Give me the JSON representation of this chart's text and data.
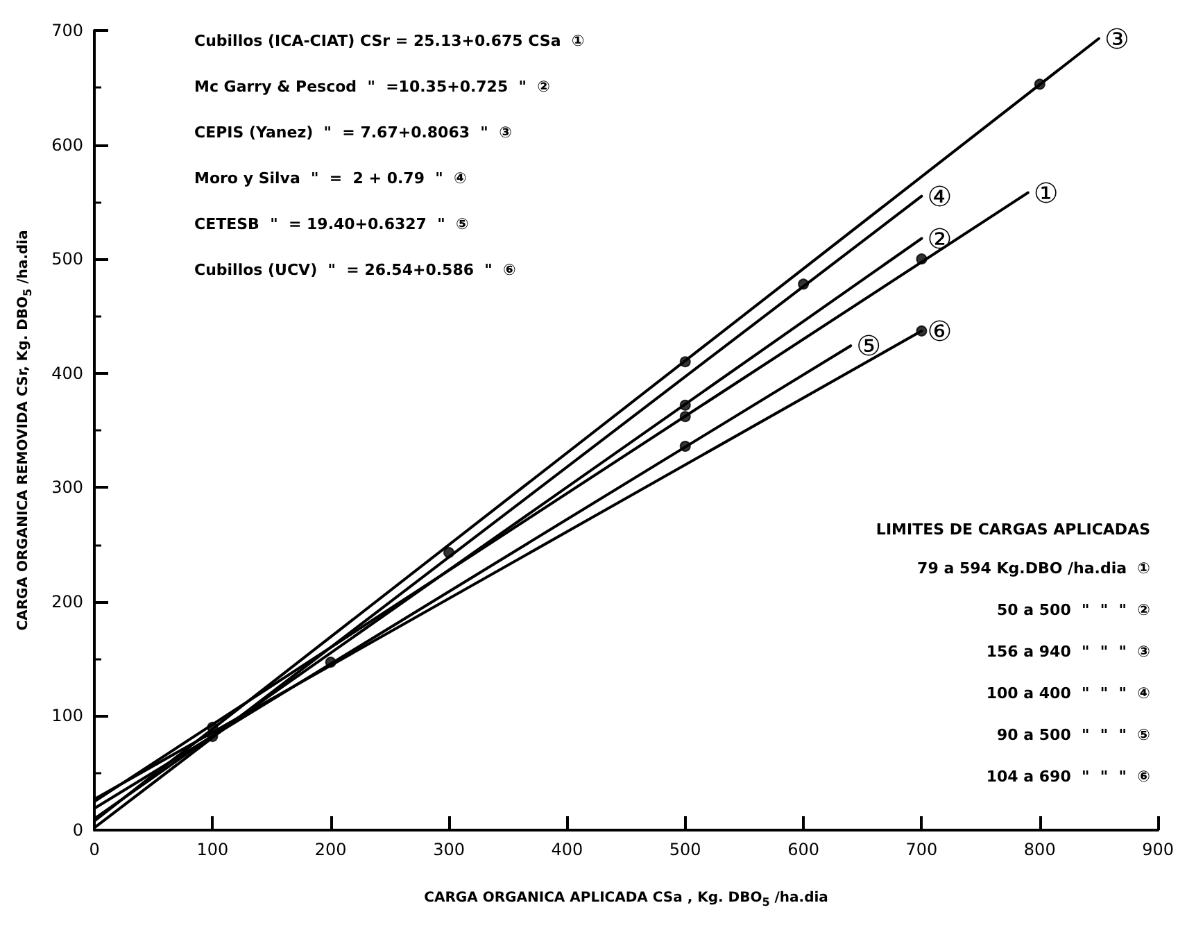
{
  "chart_data": {
    "type": "line",
    "xlabel": "CARGA ORGANICA APLICADA CSa , Kg. DBO$_{5}$ /ha.dia",
    "ylabel": "CARGA ORGANICA REMOVIDA CSr, Kg. DBO$_{5}$ /ha.dia",
    "xlim": [
      0,
      900
    ],
    "xticks": [
      0,
      100,
      200,
      300,
      400,
      500,
      600,
      700,
      800,
      900
    ],
    "ylim": [
      0,
      700
    ],
    "yticks": [
      0,
      100,
      200,
      300,
      400,
      500,
      600,
      700
    ],
    "grid": false,
    "legend": false,
    "line_style": "solid",
    "series": [
      {
        "name": "①",
        "color": "#000000",
        "x": [
          0,
          790
        ],
        "values": [
          25,
          558
        ]
      },
      {
        "name": "②",
        "color": "#000000",
        "x": [
          0,
          700
        ],
        "values": [
          10,
          518
        ]
      },
      {
        "name": "③",
        "color": "#000000",
        "x": [
          0,
          850
        ],
        "values": [
          8,
          693
        ]
      },
      {
        "name": "④",
        "color": "#000000",
        "x": [
          0,
          700
        ],
        "values": [
          2,
          555
        ]
      },
      {
        "name": "⑤",
        "color": "#000000",
        "x": [
          0,
          640
        ],
        "values": [
          19,
          424
        ]
      },
      {
        "name": "⑥",
        "color": "#000000",
        "x": [
          0,
          700
        ],
        "values": [
          27,
          437
        ]
      },
      {
        "type": "scatter",
        "marker": "circle",
        "color": "#000000",
        "x": [
          100,
          100,
          200,
          300,
          500,
          500,
          500,
          500,
          600,
          700,
          700,
          800
        ],
        "values": [
          90,
          82,
          147,
          243,
          410,
          372,
          362,
          336,
          478,
          500,
          437,
          653
        ]
      }
    ],
    "annotations": [
      "Cubillos (ICA-CIAT) CSr = 25.13+0.675 CSa  ①",
      "Mc Garry & Pescod  \"  =10.35+0.725  \"  ②",
      "CEPIS (Yanez)  \"  = 7.67+0.8063  \"  ③",
      "Moro y Silva  \"  =  2 + 0.79  \"  ④",
      "CETESB  \"  = 19.40+0.6327  \"  ⑤",
      "Cubillos (UCV)  \"  = 26.54+0.586  \"  ⑥",
      "LIMITES DE CARGAS APLICADAS",
      "79 a 594 Kg.DBO /ha.dia  ①",
      "50 a 500  \"  \"  \"  ②",
      "156 a 940  \"  \"  \"  ③",
      "100 a 400  \"  \"  \"  ④",
      "90 a 500  \"  \"  \"  ⑤",
      "104 a 690  \"  \"  \"  ⑥"
    ]
  }
}
